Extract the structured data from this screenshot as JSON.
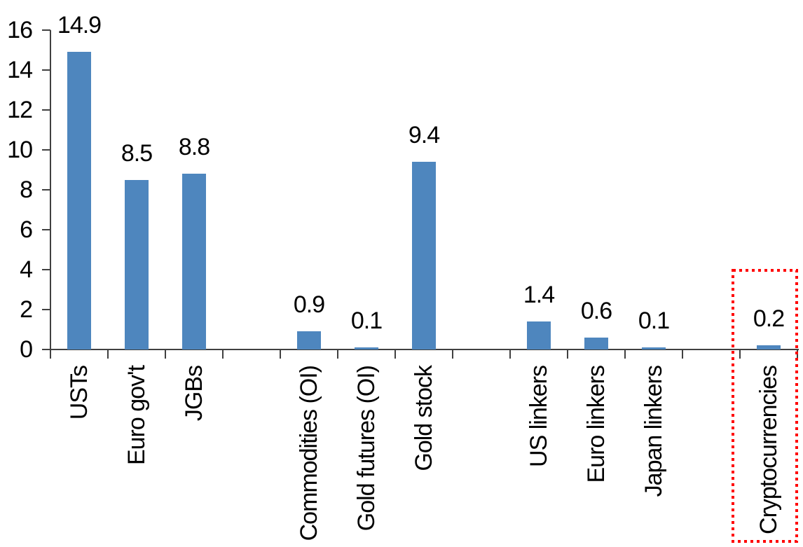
{
  "chart_data": {
    "type": "bar",
    "title": "",
    "xlabel": "",
    "ylabel": "",
    "categories": [
      "USTs",
      "Euro gov't",
      "JGBs",
      "Commodities (OI)",
      "Gold futures (OI)",
      "Gold stock",
      "US linkers",
      "Euro linkers",
      "Japan linkers",
      "Cryptocurrencies"
    ],
    "values": [
      14.9,
      8.5,
      8.8,
      0.9,
      0.1,
      9.4,
      1.4,
      0.6,
      0.1,
      0.2
    ],
    "value_labels": [
      "14.9",
      "8.5",
      "8.8",
      "0.9",
      "0.1",
      "9.4",
      "1.4",
      "0.6",
      "0.1",
      "0.2"
    ],
    "slot_indices": [
      0,
      1,
      2,
      4,
      5,
      6,
      8,
      9,
      10,
      12
    ],
    "num_slots": 13,
    "ylim": [
      0,
      16
    ],
    "yticks": [
      "0",
      "2",
      "4",
      "6",
      "8",
      "10",
      "12",
      "14",
      "16"
    ],
    "grid": false,
    "legend": false,
    "bar_color": "#4E86BE",
    "axis_color": "#404040",
    "text_color": "#000000",
    "highlight": {
      "category": "Cryptocurrencies",
      "shape": "dotted-rectangle",
      "color": "#FF0000"
    }
  }
}
